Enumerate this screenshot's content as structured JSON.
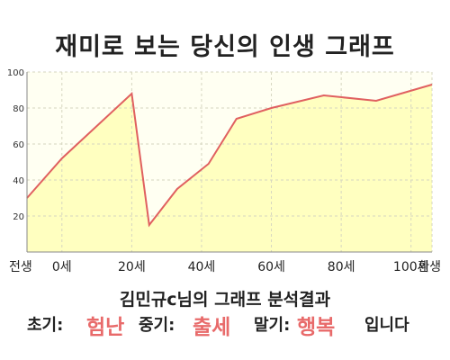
{
  "title": "재미로 보는 당신의 인생 그래프",
  "chart_data": {
    "type": "area",
    "x": [
      -10,
      0,
      20,
      25,
      33,
      42,
      50,
      60,
      75,
      90,
      106
    ],
    "values": [
      30,
      52,
      88,
      15,
      35,
      49,
      74,
      80,
      87,
      84,
      93
    ],
    "xticks": [
      {
        "x": -10,
        "label": "전생"
      },
      {
        "x": 0,
        "label": "0세"
      },
      {
        "x": 20,
        "label": "20세"
      },
      {
        "x": 40,
        "label": "40세"
      },
      {
        "x": 60,
        "label": "60세"
      },
      {
        "x": 80,
        "label": "80세"
      },
      {
        "x": 100,
        "label": "100세"
      },
      {
        "x": 106,
        "label": "환생"
      }
    ],
    "yticks": [
      20,
      40,
      60,
      80,
      100
    ],
    "ylim": [
      0,
      100
    ],
    "xlim": [
      -10,
      106
    ],
    "grid": true,
    "line_color": "#e06060",
    "fill_color": "#ffffc0",
    "bg_color": "#fffff2",
    "grid_color": "#d6d6c0"
  },
  "result": {
    "line1": "김민규c님의 그래프 분석결과",
    "early_label": "초기:",
    "early_value": "험난",
    "mid_label": "중기:",
    "mid_value": "출세",
    "late_label": "말기:",
    "late_value": "행복",
    "ending": "입니다"
  }
}
